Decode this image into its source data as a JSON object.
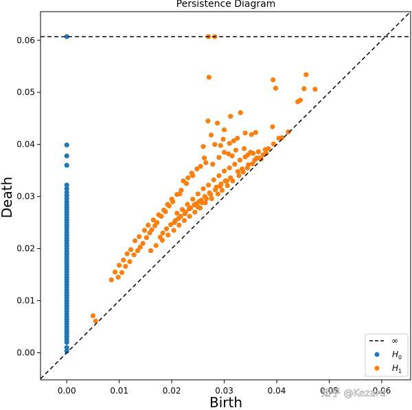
{
  "chart_data": {
    "type": "scatter",
    "title": "Persistence Diagram",
    "xlabel": "Birth",
    "ylabel": "Death",
    "xlim": [
      -0.005,
      0.0655
    ],
    "ylim": [
      -0.0052,
      0.0655
    ],
    "xticks": [
      "0.00",
      "0.01",
      "0.02",
      "0.03",
      "0.04",
      "0.05",
      "0.06"
    ],
    "xtick_values": [
      0,
      0.01,
      0.02,
      0.03,
      0.04,
      0.05,
      0.06
    ],
    "yticks": [
      "0.00",
      "0.01",
      "0.02",
      "0.03",
      "0.04",
      "0.05",
      "0.06"
    ],
    "ytick_values": [
      0,
      0.01,
      0.02,
      0.03,
      0.04,
      0.05,
      0.06
    ],
    "infinity_death": 0.0607,
    "grid": false,
    "legend_position": "bottom-right",
    "legend": [
      {
        "key": "infinity",
        "label": "∞"
      },
      {
        "key": "H0",
        "label": "H",
        "sub": "0"
      },
      {
        "key": "H1",
        "label": "H",
        "sub": "1"
      }
    ],
    "colors": {
      "H0": "#1f77b4",
      "H1": "#ff7f0e",
      "diagonal": "#000000"
    },
    "series": [
      {
        "name": "H0",
        "birth": [
          0,
          0,
          0,
          0,
          0,
          0,
          0,
          0,
          0,
          0,
          0,
          0,
          0,
          0,
          0,
          0,
          0,
          0,
          0,
          0,
          0,
          0,
          0,
          0,
          0,
          0,
          0,
          0,
          0,
          0,
          0,
          0,
          0,
          0,
          0,
          0,
          0,
          0,
          0,
          0,
          0,
          0,
          0,
          0,
          0,
          0,
          0,
          0,
          0,
          0,
          0,
          0,
          0,
          0,
          0,
          0,
          0,
          0,
          0,
          0,
          0,
          0,
          0,
          0,
          0,
          0
        ],
        "death": [
          0.0607,
          0.0399,
          0.0378,
          0.036,
          0.0322,
          0.0315,
          0.0308,
          0.0302,
          0.0296,
          0.029,
          0.0285,
          0.028,
          0.0275,
          0.027,
          0.0265,
          0.026,
          0.0255,
          0.025,
          0.0245,
          0.024,
          0.0235,
          0.023,
          0.0225,
          0.022,
          0.0215,
          0.021,
          0.0205,
          0.02,
          0.0195,
          0.019,
          0.0185,
          0.018,
          0.0175,
          0.017,
          0.0165,
          0.016,
          0.0155,
          0.015,
          0.0145,
          0.014,
          0.0135,
          0.013,
          0.0125,
          0.012,
          0.0115,
          0.011,
          0.0105,
          0.01,
          0.0095,
          0.009,
          0.0085,
          0.008,
          0.0075,
          0.007,
          0.0065,
          0.006,
          0.0055,
          0.005,
          0.0045,
          0.004,
          0.0035,
          0.003,
          0.0025,
          0.002,
          0.001,
          0.0003
        ]
      },
      {
        "name": "H1",
        "birth": [
          0.027,
          0.0282,
          0.0271,
          0.0393,
          0.0456,
          0.0398,
          0.0473,
          0.0452,
          0.0445,
          0.044,
          0.0312,
          0.0331,
          0.0269,
          0.0287,
          0.0392,
          0.03,
          0.0275,
          0.034,
          0.036,
          0.0352,
          0.0325,
          0.0298,
          0.031,
          0.0318,
          0.0282,
          0.0293,
          0.026,
          0.035,
          0.0365,
          0.038,
          0.041,
          0.0422,
          0.0262,
          0.0248,
          0.0231,
          0.0218,
          0.0215,
          0.0222,
          0.0238,
          0.0255,
          0.0265,
          0.0278,
          0.029,
          0.03,
          0.0308,
          0.0315,
          0.0322,
          0.0338,
          0.0345,
          0.0355,
          0.0362,
          0.037,
          0.0378,
          0.024,
          0.0228,
          0.021,
          0.02,
          0.0192,
          0.0185,
          0.0175,
          0.0165,
          0.0155,
          0.0148,
          0.0138,
          0.013,
          0.0122,
          0.0115,
          0.0108,
          0.01,
          0.0092,
          0.0085,
          0.0055,
          0.005,
          0.0202,
          0.0195,
          0.0188,
          0.018,
          0.0172,
          0.0168,
          0.0162,
          0.0158,
          0.0152,
          0.0145,
          0.014,
          0.0135,
          0.0128,
          0.012,
          0.0112,
          0.0105,
          0.0098,
          0.021,
          0.022,
          0.023,
          0.024,
          0.025,
          0.026,
          0.027,
          0.028,
          0.029,
          0.03,
          0.031,
          0.032,
          0.033,
          0.034,
          0.025,
          0.0258,
          0.0266,
          0.0274,
          0.0283,
          0.0292,
          0.0305,
          0.0312,
          0.0326,
          0.0334,
          0.0346,
          0.0358,
          0.0205,
          0.0213,
          0.0225,
          0.0233,
          0.0243,
          0.0252,
          0.0263,
          0.0272,
          0.0285,
          0.0294,
          0.0302,
          0.0178,
          0.0183,
          0.019,
          0.0198,
          0.0207,
          0.0217,
          0.0226,
          0.0236,
          0.0246,
          0.0256,
          0.016,
          0.017,
          0.0182,
          0.0193,
          0.0204,
          0.0214,
          0.0224,
          0.0234,
          0.0244,
          0.0254,
          0.0264,
          0.0276,
          0.0288,
          0.0296,
          0.0306,
          0.0316,
          0.0328,
          0.0336,
          0.0344,
          0.0354,
          0.0366,
          0.0374,
          0.0384,
          0.0394,
          0.0404
        ],
        "death": [
          0.0607,
          0.0607,
          0.0529,
          0.0524,
          0.0534,
          0.0508,
          0.0506,
          0.0507,
          0.0485,
          0.0482,
          0.0454,
          0.0461,
          0.0445,
          0.0441,
          0.0434,
          0.0428,
          0.0418,
          0.0422,
          0.0423,
          0.0419,
          0.0412,
          0.041,
          0.0402,
          0.0407,
          0.04,
          0.0398,
          0.0396,
          0.0385,
          0.0386,
          0.0383,
          0.0413,
          0.0424,
          0.0374,
          0.0353,
          0.0336,
          0.0312,
          0.0305,
          0.033,
          0.0345,
          0.0358,
          0.0365,
          0.0362,
          0.0375,
          0.0385,
          0.0382,
          0.0378,
          0.0389,
          0.0392,
          0.038,
          0.0383,
          0.0374,
          0.0372,
          0.039,
          0.034,
          0.0325,
          0.0304,
          0.0295,
          0.0285,
          0.0274,
          0.0265,
          0.0255,
          0.0245,
          0.0235,
          0.0223,
          0.0215,
          0.0198,
          0.019,
          0.0178,
          0.0168,
          0.0155,
          0.014,
          0.0061,
          0.0071,
          0.029,
          0.0282,
          0.0271,
          0.0262,
          0.025,
          0.0244,
          0.0236,
          0.023,
          0.0221,
          0.021,
          0.0203,
          0.0196,
          0.0188,
          0.0175,
          0.0166,
          0.0154,
          0.0145,
          0.0268,
          0.0275,
          0.0285,
          0.0295,
          0.0305,
          0.0315,
          0.0322,
          0.0332,
          0.034,
          0.0349,
          0.0355,
          0.0362,
          0.037,
          0.0376,
          0.028,
          0.0288,
          0.0296,
          0.0304,
          0.0313,
          0.032,
          0.033,
          0.0336,
          0.0348,
          0.0353,
          0.0361,
          0.037,
          0.025,
          0.0258,
          0.0267,
          0.0276,
          0.0284,
          0.029,
          0.03,
          0.0307,
          0.0318,
          0.0324,
          0.033,
          0.0222,
          0.023,
          0.0238,
          0.0246,
          0.0254,
          0.0262,
          0.027,
          0.0278,
          0.0286,
          0.0293,
          0.0196,
          0.0206,
          0.0216,
          0.0226,
          0.0235,
          0.0245,
          0.0254,
          0.0262,
          0.027,
          0.0278,
          0.0288,
          0.0296,
          0.0305,
          0.0312,
          0.0321,
          0.033,
          0.034,
          0.0347,
          0.0355,
          0.0363,
          0.0374,
          0.038,
          0.0392,
          0.0401,
          0.0412
        ]
      }
    ]
  },
  "watermark": "知乎 @Kezard"
}
